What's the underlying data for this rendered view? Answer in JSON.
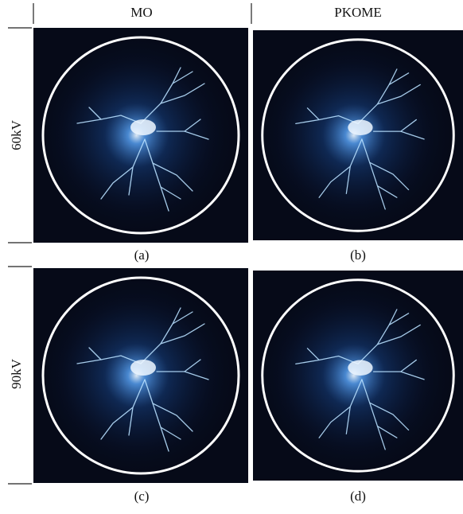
{
  "columns": [
    "MO",
    "PKOME"
  ],
  "rows": [
    "60kV",
    "90kV"
  ],
  "panels": [
    "(a)",
    "(b)",
    "(c)",
    "(d)"
  ]
}
